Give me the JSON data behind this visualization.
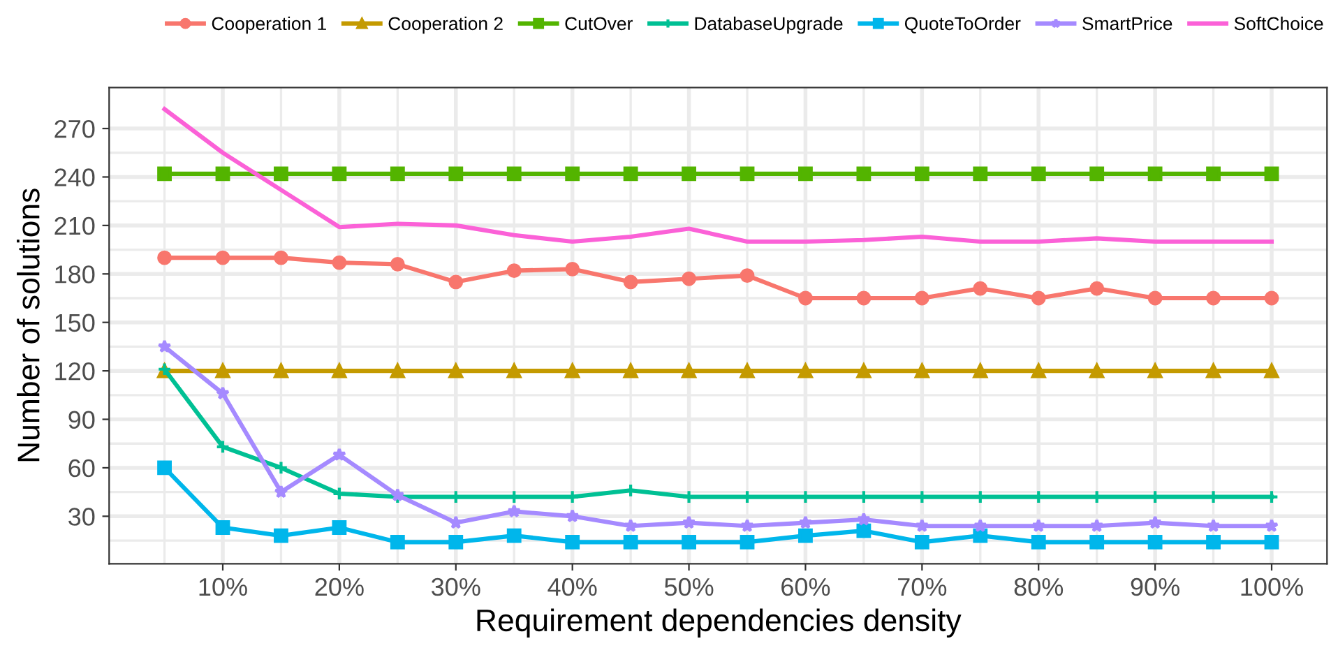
{
  "chart_data": {
    "type": "line",
    "xlabel": "Requirement dependencies density",
    "ylabel": "Number of solutions",
    "x": [
      5,
      10,
      15,
      20,
      25,
      30,
      35,
      40,
      45,
      50,
      55,
      60,
      65,
      70,
      75,
      80,
      85,
      90,
      95,
      100
    ],
    "xlim": [
      0.25,
      104.75
    ],
    "ylim": [
      0.6,
      295.4
    ],
    "xticks": [
      {
        "value": 10,
        "label": "10%"
      },
      {
        "value": 20,
        "label": "20%"
      },
      {
        "value": 30,
        "label": "30%"
      },
      {
        "value": 40,
        "label": "40%"
      },
      {
        "value": 50,
        "label": "50%"
      },
      {
        "value": 60,
        "label": "60%"
      },
      {
        "value": 70,
        "label": "70%"
      },
      {
        "value": 80,
        "label": "80%"
      },
      {
        "value": 90,
        "label": "90%"
      },
      {
        "value": 100,
        "label": "100%"
      }
    ],
    "yticks": [
      30,
      60,
      90,
      120,
      150,
      180,
      210,
      240,
      270
    ],
    "grid": true,
    "legend": "top",
    "line_style": "solid",
    "series": [
      {
        "name": "Cooperation 1",
        "color": "#f8766d",
        "marker": "circle",
        "values": [
          190,
          190,
          190,
          187,
          186,
          175,
          182,
          183,
          175,
          177,
          179,
          165,
          165,
          165,
          171,
          165,
          171,
          165,
          165,
          165
        ]
      },
      {
        "name": "Cooperation 2",
        "color": "#c49a00",
        "marker": "triangle",
        "values": [
          120,
          120,
          120,
          120,
          120,
          120,
          120,
          120,
          120,
          120,
          120,
          120,
          120,
          120,
          120,
          120,
          120,
          120,
          120,
          120
        ]
      },
      {
        "name": "CutOver",
        "color": "#53b400",
        "marker": "square",
        "values": [
          242,
          242,
          242,
          242,
          242,
          242,
          242,
          242,
          242,
          242,
          242,
          242,
          242,
          242,
          242,
          242,
          242,
          242,
          242,
          242
        ]
      },
      {
        "name": "DatabaseUpgrade",
        "color": "#00c094",
        "marker": "cross",
        "values": [
          121,
          73,
          60,
          44,
          42,
          42,
          42,
          42,
          46,
          42,
          42,
          42,
          42,
          42,
          42,
          42,
          42,
          42,
          42,
          42
        ]
      },
      {
        "name": "QuoteToOrder",
        "color": "#00b6eb",
        "marker": "square",
        "values": [
          60,
          23,
          18,
          23,
          14,
          14,
          18,
          14,
          14,
          14,
          14,
          18,
          21,
          14,
          18,
          14,
          14,
          14,
          14,
          14
        ]
      },
      {
        "name": "SmartPrice",
        "color": "#a58aff",
        "marker": "star",
        "values": [
          135,
          106,
          45,
          68,
          43,
          26,
          33,
          30,
          24,
          26,
          24,
          26,
          28,
          24,
          24,
          24,
          24,
          26,
          24,
          24
        ]
      },
      {
        "name": "SoftChoice",
        "color": "#fb61d7",
        "marker": "none",
        "values": [
          282,
          255,
          232,
          209,
          211,
          210,
          204,
          200,
          203,
          208,
          200,
          200,
          201,
          203,
          200,
          200,
          202,
          200,
          200,
          200
        ]
      }
    ]
  }
}
